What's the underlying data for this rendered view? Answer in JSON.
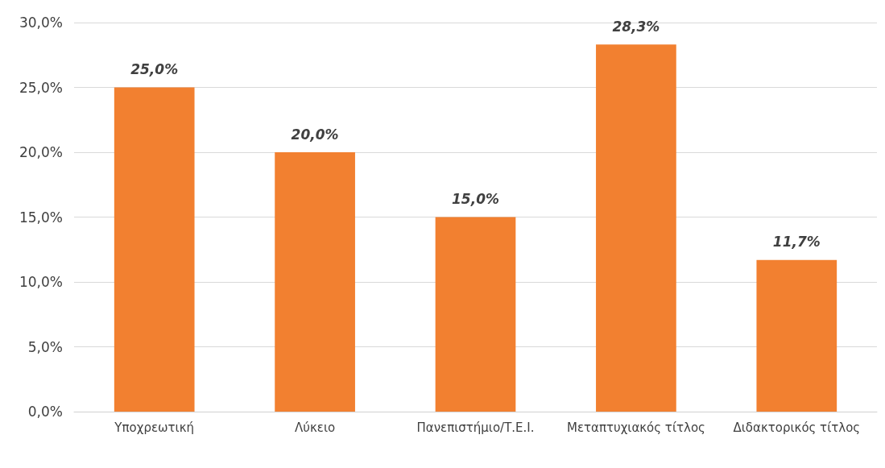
{
  "chart_data": {
    "type": "bar",
    "categories": [
      "Υποχρεωτική",
      "Λύκειο",
      "Πανεπιστήμιο/Τ.Ε.Ι.",
      "Μεταπτυχιακός τίτλος",
      "Διδακτορικός τίτλος"
    ],
    "values": [
      25.0,
      20.0,
      15.0,
      28.3,
      11.7
    ],
    "value_labels": [
      "25,0%",
      "20,0%",
      "15,0%",
      "28,3%",
      "11,7%"
    ],
    "color": "#f28030",
    "ylim": [
      0,
      30
    ],
    "yticks": [
      {
        "value": 0,
        "label": "0,0%"
      },
      {
        "value": 5,
        "label": "5,0%"
      },
      {
        "value": 10,
        "label": "10,0%"
      },
      {
        "value": 15,
        "label": "15,0%"
      },
      {
        "value": 20,
        "label": "20,0%"
      },
      {
        "value": 25,
        "label": "25,0%"
      },
      {
        "value": 30,
        "label": "30,0%"
      }
    ],
    "grid": true
  }
}
